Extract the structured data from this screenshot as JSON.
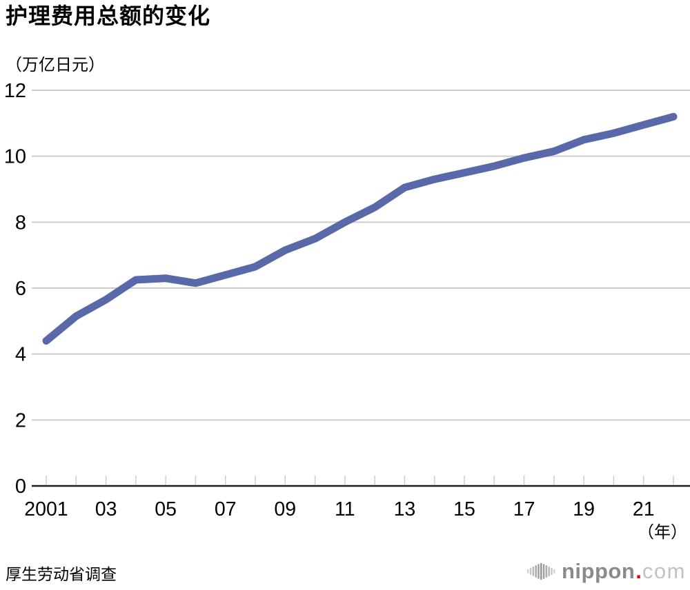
{
  "chart_data": {
    "type": "line",
    "title": "护理费用总额的变化",
    "unit_label": "（万亿日元）",
    "x_axis_unit": "（年）",
    "x": [
      2001,
      2002,
      2003,
      2004,
      2005,
      2006,
      2007,
      2008,
      2009,
      2010,
      2011,
      2012,
      2013,
      2014,
      2015,
      2016,
      2017,
      2018,
      2019,
      2020,
      2021,
      2022
    ],
    "values": [
      4.4,
      5.15,
      5.65,
      6.25,
      6.3,
      6.15,
      6.4,
      6.65,
      7.15,
      7.5,
      8.0,
      8.45,
      9.05,
      9.3,
      9.5,
      9.7,
      9.95,
      10.15,
      10.5,
      10.7,
      10.95,
      11.2
    ],
    "y_ticks": [
      0,
      2,
      4,
      6,
      8,
      10,
      12
    ],
    "x_tick_labels": [
      {
        "year": 2001,
        "label": "2001"
      },
      {
        "year": 2003,
        "label": "03"
      },
      {
        "year": 2005,
        "label": "05"
      },
      {
        "year": 2007,
        "label": "07"
      },
      {
        "year": 2009,
        "label": "09"
      },
      {
        "year": 2011,
        "label": "11"
      },
      {
        "year": 2013,
        "label": "13"
      },
      {
        "year": 2015,
        "label": "15"
      },
      {
        "year": 2017,
        "label": "17"
      },
      {
        "year": 2019,
        "label": "19"
      },
      {
        "year": 2021,
        "label": "21"
      }
    ],
    "ylim": [
      0,
      12
    ],
    "grid": true,
    "legend_position": "none",
    "line_color": "#5868a8",
    "grid_color": "#cccccc",
    "axis_color": "#1a1a1a",
    "tick_text_color": "#000000"
  },
  "source": "厚生劳动省调查",
  "branding": {
    "name": "nippon",
    "dot": ".",
    "tld": "com",
    "dot_color": "#e60012",
    "icon": "soundwave-bars-icon"
  }
}
